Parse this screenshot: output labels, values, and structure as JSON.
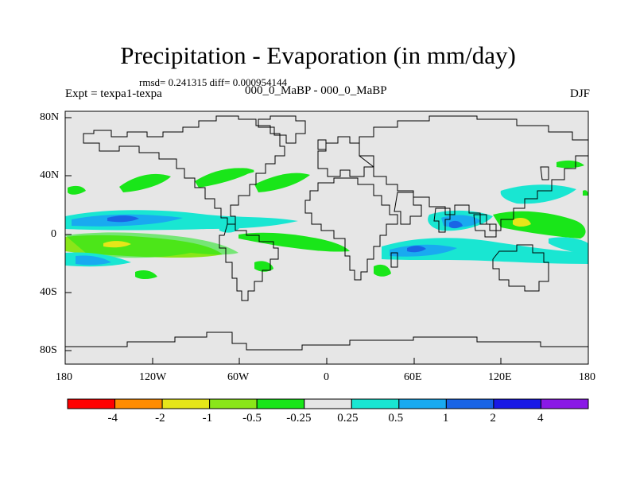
{
  "title": "Precipitation - Evaporation (in mm/day)",
  "stats": "rmsd= 0.241315  diff= 0.000954144",
  "experiment": "Expt = texpa1-texpa",
  "experiment_names": "000_0_MaBP - 000_0_MaBP",
  "season": "DJF",
  "x_ticks": [
    "180",
    "120W",
    "60W",
    "0",
    "60E",
    "120E",
    "180"
  ],
  "y_ticks": [
    "80N",
    "40N",
    "0",
    "40S",
    "80S"
  ],
  "colorbar": {
    "labels": [
      "-4",
      "-2",
      "-1",
      "-0.5",
      "-0.25",
      "0.25",
      "0.5",
      "1",
      "2",
      "4"
    ],
    "colors": [
      "#ff0000",
      "#ff8c00",
      "#e6e619",
      "#8ae619",
      "#19e619",
      "#e6e6e6",
      "#19e6d2",
      "#19aaf0",
      "#1964e6",
      "#1919e6",
      "#8a19e6"
    ]
  },
  "colors": {
    "land_sea_background": "#e6e6e6",
    "outline": "#000000"
  }
}
